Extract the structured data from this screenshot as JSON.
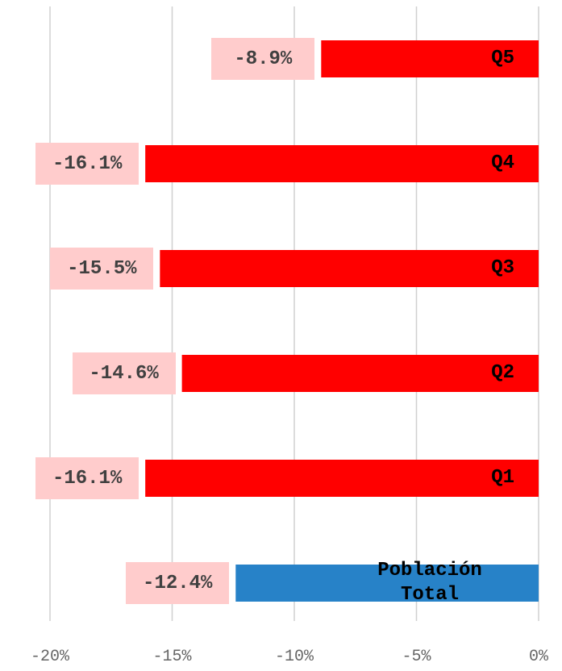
{
  "chart_data": {
    "type": "bar",
    "orientation": "horizontal",
    "categories": [
      "Q5",
      "Q4",
      "Q3",
      "Q2",
      "Q1",
      "Población Total"
    ],
    "values": [
      -8.9,
      -16.1,
      -15.5,
      -14.6,
      -16.1,
      -12.4
    ],
    "value_labels": [
      "-8.9%",
      "-16.1%",
      "-15.5%",
      "-14.6%",
      "-16.1%",
      "-12.4%"
    ],
    "colors": [
      "#ff0000",
      "#ff0000",
      "#ff0000",
      "#ff0000",
      "#ff0000",
      "#2782c8"
    ],
    "xlim": [
      -20,
      0
    ],
    "xticks": [
      {
        "value": -20,
        "label": "-20%"
      },
      {
        "value": -15,
        "label": "-15%"
      },
      {
        "value": -10,
        "label": "-10%"
      },
      {
        "value": -5,
        "label": "-5%"
      },
      {
        "value": 0,
        "label": "0%"
      }
    ],
    "grid": true
  }
}
